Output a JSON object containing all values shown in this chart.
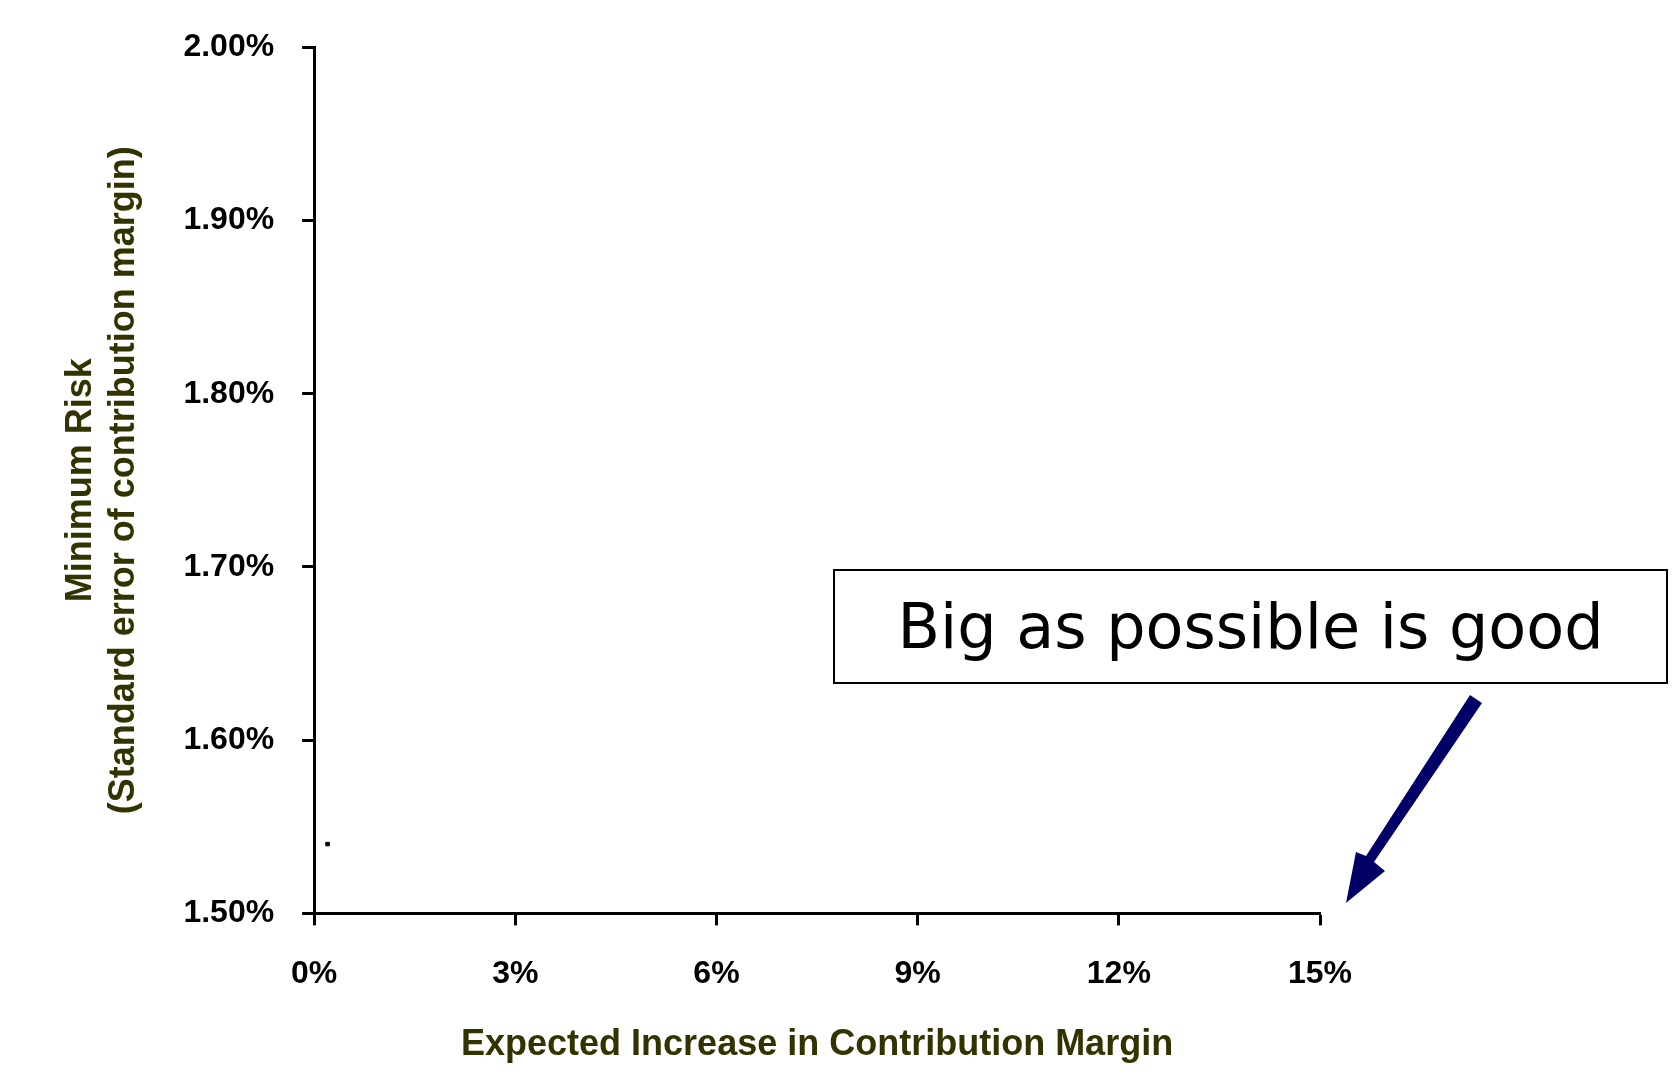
{
  "chart_data": {
    "type": "scatter",
    "xlabel": "Expected Increase in Contribution Margin",
    "ylabel": "Minimum Risk\n(Standard error of contribution margin)",
    "x": [
      0.2
    ],
    "values": [
      1.54
    ],
    "color": "#000000",
    "marker": "square",
    "xlim": [
      0,
      15
    ],
    "xticks": [
      {
        "value": 0,
        "label": "0%"
      },
      {
        "value": 3,
        "label": "3%"
      },
      {
        "value": 6,
        "label": "6%"
      },
      {
        "value": 9,
        "label": "9%"
      },
      {
        "value": 12,
        "label": "12%"
      },
      {
        "value": 15,
        "label": "15%"
      }
    ],
    "ylim": [
      1.5,
      2
    ],
    "yticks": [
      {
        "value": 1.5,
        "label": "1.50%"
      },
      {
        "value": 1.6,
        "label": "1.60%"
      },
      {
        "value": 1.7,
        "label": "1.70%"
      },
      {
        "value": 1.8,
        "label": "1.80%"
      },
      {
        "value": 1.9,
        "label": "1.90%"
      },
      {
        "value": 2,
        "label": "2.00%"
      }
    ],
    "grid": false,
    "legend": false,
    "annotations": [
      "Big as possible is good"
    ]
  }
}
